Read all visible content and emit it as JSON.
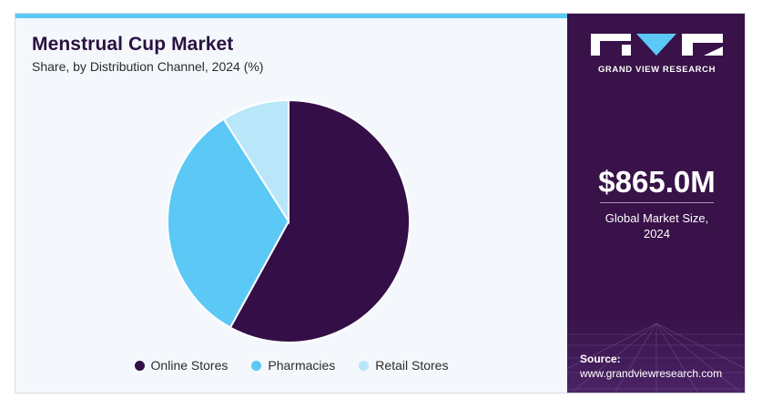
{
  "colors": {
    "online": "#340f47",
    "pharmacies": "#5bc8f5",
    "retail": "#b9e6f9",
    "sidebar": "#381248",
    "accent_bar": "#5bc8f5"
  },
  "header": {
    "title": "Menstrual Cup Market",
    "subtitle": "Share, by Distribution Channel, 2024 (%)"
  },
  "chart_data": {
    "type": "pie",
    "title": "Menstrual Cup Market",
    "subtitle": "Share, by Distribution Channel, 2024 (%)",
    "categories": [
      "Online Stores",
      "Pharmacies",
      "Retail Stores"
    ],
    "values": [
      58,
      33,
      9
    ],
    "start_angle_deg": 0,
    "direction": "clockwise",
    "legend": "bottom"
  },
  "sidebar": {
    "brand": "GRAND VIEW RESEARCH",
    "logo_icon": "gvr-logo-icon",
    "stat_value": "$865.0M",
    "stat_label_line1": "Global Market Size,",
    "stat_label_line2": "2024",
    "source_label": "Source:",
    "source_url": "www.grandviewresearch.com"
  }
}
